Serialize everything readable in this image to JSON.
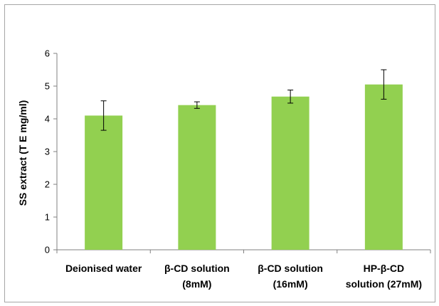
{
  "chart_data": {
    "type": "bar",
    "title": "",
    "xlabel": "",
    "ylabel": "SS extract (T E mg/ml)",
    "ylim": [
      0,
      6
    ],
    "yticks": [
      0,
      1,
      2,
      3,
      4,
      5,
      6
    ],
    "grid": false,
    "legend": "none",
    "categories": [
      [
        "Deionised water"
      ],
      [
        "β-CD solution",
        "(8mM)"
      ],
      [
        "β-CD solution",
        "(16mM)"
      ],
      [
        "HP-β-CD",
        "solution (27mM)"
      ]
    ],
    "values": [
      4.1,
      4.42,
      4.68,
      5.05
    ],
    "error": [
      0.45,
      0.1,
      0.2,
      0.45
    ],
    "colors": {
      "bar": "#92d050",
      "axis": "#808080",
      "error": "#000000"
    }
  }
}
